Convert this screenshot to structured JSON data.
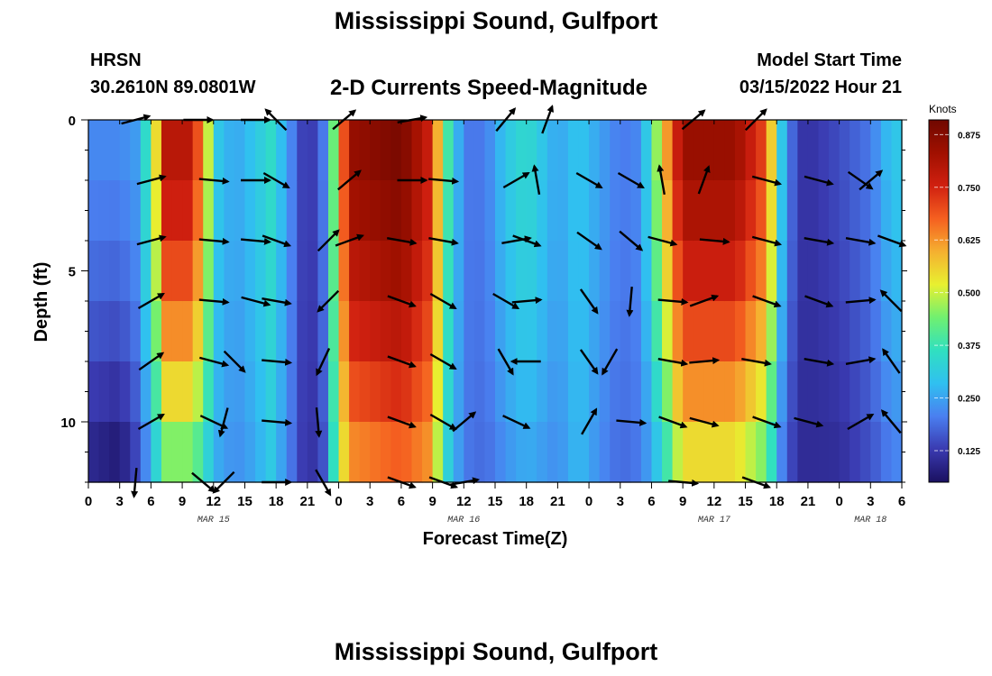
{
  "header": {
    "title": "Mississippi Sound, Gulfport",
    "station_id": "HRSN",
    "station_coords": "30.2610N  89.0801W",
    "model_label": "Model Start Time",
    "model_time": "03/15/2022 Hour 21",
    "bottom_title": "Mississippi Sound, Gulfport"
  },
  "chart_data": {
    "type": "heatmap",
    "title": "2-D Currents Speed-Magnitude",
    "xlabel": "Forecast Time(Z)",
    "ylabel": "Depth (ft)",
    "x_tick_labels": [
      "0",
      "3",
      "6",
      "9",
      "12",
      "15",
      "18",
      "21",
      "0",
      "3",
      "6",
      "9",
      "12",
      "15",
      "18",
      "21",
      "0",
      "3",
      "6",
      "9",
      "12",
      "15",
      "18",
      "21",
      "0",
      "3",
      "6"
    ],
    "x_range_hours": [
      0,
      78
    ],
    "date_labels": [
      {
        "label": "MAR 15",
        "hour": 12
      },
      {
        "label": "MAR 16",
        "hour": 36
      },
      {
        "label": "MAR 17",
        "hour": 60
      },
      {
        "label": "MAR 18",
        "hour": 75
      }
    ],
    "y_range_ft": [
      0,
      12
    ],
    "y_tick_labels": [
      {
        "value": 0,
        "label": "0"
      },
      {
        "value": 5,
        "label": "5"
      },
      {
        "value": 10,
        "label": "10"
      }
    ],
    "colorbar": {
      "label": "Knots",
      "range": [
        0.05,
        0.91
      ],
      "ticks": [
        "0.125",
        "0.250",
        "0.375",
        "0.500",
        "0.625",
        "0.750",
        "0.875"
      ],
      "colors": [
        "#1a1060",
        "#3a3ab0",
        "#4a7ff0",
        "#30c0f0",
        "#30e0c0",
        "#70f070",
        "#e8f030",
        "#f5b030",
        "#f56020",
        "#d02010",
        "#a01000",
        "#700800"
      ]
    },
    "depth_levels_ft": [
      0,
      2,
      4,
      6,
      8,
      10,
      12
    ],
    "speed_profile": {
      "hours": [
        0,
        3,
        5,
        6.5,
        7.5,
        10,
        11.5,
        12.5,
        14,
        16,
        17.5,
        19,
        21,
        22.5,
        24,
        25,
        30,
        33,
        34,
        36,
        38,
        40,
        42,
        45,
        47,
        49,
        51,
        53,
        55,
        57,
        58.5,
        60,
        62,
        65,
        66.5,
        68,
        69.5,
        72,
        75,
        77,
        78
      ],
      "surface_knots": [
        0.22,
        0.22,
        0.25,
        0.55,
        0.8,
        0.8,
        0.5,
        0.3,
        0.25,
        0.3,
        0.35,
        0.25,
        0.1,
        0.2,
        0.55,
        0.85,
        0.9,
        0.75,
        0.45,
        0.2,
        0.2,
        0.3,
        0.35,
        0.25,
        0.3,
        0.25,
        0.2,
        0.22,
        0.55,
        0.85,
        0.85,
        0.85,
        0.85,
        0.7,
        0.3,
        0.12,
        0.12,
        0.15,
        0.2,
        0.3,
        0.3
      ],
      "bottom_knots": [
        0.08,
        0.05,
        0.15,
        0.3,
        0.4,
        0.4,
        0.3,
        0.25,
        0.22,
        0.25,
        0.3,
        0.22,
        0.1,
        0.15,
        0.45,
        0.6,
        0.65,
        0.6,
        0.35,
        0.2,
        0.18,
        0.22,
        0.25,
        0.22,
        0.28,
        0.22,
        0.18,
        0.2,
        0.3,
        0.5,
        0.5,
        0.5,
        0.5,
        0.4,
        0.2,
        0.1,
        0.1,
        0.1,
        0.15,
        0.2,
        0.2
      ]
    },
    "vectors": [
      {
        "hour": 4.5,
        "depth": 0,
        "angle": 15
      },
      {
        "hour": 10.5,
        "depth": 0,
        "angle": 0
      },
      {
        "hour": 16,
        "depth": 0,
        "angle": 0
      },
      {
        "hour": 18,
        "depth": 0,
        "angle": 135
      },
      {
        "hour": 24.5,
        "depth": 0,
        "angle": 40
      },
      {
        "hour": 31,
        "depth": 0,
        "angle": 10
      },
      {
        "hour": 40,
        "depth": 0,
        "angle": 50
      },
      {
        "hour": 44,
        "depth": 0,
        "angle": 70
      },
      {
        "hour": 58,
        "depth": 0,
        "angle": 40
      },
      {
        "hour": 64,
        "depth": 0,
        "angle": 45
      },
      {
        "hour": 6,
        "depth": 2,
        "angle": 15
      },
      {
        "hour": 12,
        "depth": 2,
        "angle": -5
      },
      {
        "hour": 16,
        "depth": 2,
        "angle": 0
      },
      {
        "hour": 18,
        "depth": 2,
        "angle": -30
      },
      {
        "hour": 25,
        "depth": 2,
        "angle": 40
      },
      {
        "hour": 31,
        "depth": 2,
        "angle": 0
      },
      {
        "hour": 34,
        "depth": 2,
        "angle": -5
      },
      {
        "hour": 41,
        "depth": 2,
        "angle": 30
      },
      {
        "hour": 43,
        "depth": 2,
        "angle": 100
      },
      {
        "hour": 48,
        "depth": 2,
        "angle": -30
      },
      {
        "hour": 52,
        "depth": 2,
        "angle": -30
      },
      {
        "hour": 55,
        "depth": 2,
        "angle": 100
      },
      {
        "hour": 59,
        "depth": 2,
        "angle": 70
      },
      {
        "hour": 65,
        "depth": 2,
        "angle": -15
      },
      {
        "hour": 70,
        "depth": 2,
        "angle": -15
      },
      {
        "hour": 74,
        "depth": 2,
        "angle": -35
      },
      {
        "hour": 75,
        "depth": 2,
        "angle": 40
      },
      {
        "hour": 6,
        "depth": 4,
        "angle": 15
      },
      {
        "hour": 12,
        "depth": 4,
        "angle": -5
      },
      {
        "hour": 16,
        "depth": 4,
        "angle": -5
      },
      {
        "hour": 18,
        "depth": 4,
        "angle": -20
      },
      {
        "hour": 23,
        "depth": 4,
        "angle": 45
      },
      {
        "hour": 25,
        "depth": 4,
        "angle": 20
      },
      {
        "hour": 30,
        "depth": 4,
        "angle": -10
      },
      {
        "hour": 34,
        "depth": 4,
        "angle": -10
      },
      {
        "hour": 41,
        "depth": 4,
        "angle": 10
      },
      {
        "hour": 42,
        "depth": 4,
        "angle": -20
      },
      {
        "hour": 48,
        "depth": 4,
        "angle": -35
      },
      {
        "hour": 52,
        "depth": 4,
        "angle": -40
      },
      {
        "hour": 55,
        "depth": 4,
        "angle": -15
      },
      {
        "hour": 60,
        "depth": 4,
        "angle": -5
      },
      {
        "hour": 65,
        "depth": 4,
        "angle": -15
      },
      {
        "hour": 70,
        "depth": 4,
        "angle": -10
      },
      {
        "hour": 74,
        "depth": 4,
        "angle": -10
      },
      {
        "hour": 77,
        "depth": 4,
        "angle": -20
      },
      {
        "hour": 6,
        "depth": 6,
        "angle": 30
      },
      {
        "hour": 12,
        "depth": 6,
        "angle": -5
      },
      {
        "hour": 16,
        "depth": 6,
        "angle": -15
      },
      {
        "hour": 18,
        "depth": 6,
        "angle": -10
      },
      {
        "hour": 23,
        "depth": 6,
        "angle": 225
      },
      {
        "hour": 30,
        "depth": 6,
        "angle": -20
      },
      {
        "hour": 34,
        "depth": 6,
        "angle": -30
      },
      {
        "hour": 40,
        "depth": 6,
        "angle": -30
      },
      {
        "hour": 42,
        "depth": 6,
        "angle": 5
      },
      {
        "hour": 48,
        "depth": 6,
        "angle": -55
      },
      {
        "hour": 52,
        "depth": 6,
        "angle": -95
      },
      {
        "hour": 56,
        "depth": 6,
        "angle": -5
      },
      {
        "hour": 59,
        "depth": 6,
        "angle": 20
      },
      {
        "hour": 65,
        "depth": 6,
        "angle": -20
      },
      {
        "hour": 70,
        "depth": 6,
        "angle": -20
      },
      {
        "hour": 74,
        "depth": 6,
        "angle": 5
      },
      {
        "hour": 77,
        "depth": 6,
        "angle": 135
      },
      {
        "hour": 6,
        "depth": 8,
        "angle": 35
      },
      {
        "hour": 12,
        "depth": 8,
        "angle": -15
      },
      {
        "hour": 14,
        "depth": 8,
        "angle": -45
      },
      {
        "hour": 18,
        "depth": 8,
        "angle": -5
      },
      {
        "hour": 22.5,
        "depth": 8,
        "angle": 245
      },
      {
        "hour": 30,
        "depth": 8,
        "angle": -20
      },
      {
        "hour": 34,
        "depth": 8,
        "angle": -30
      },
      {
        "hour": 40,
        "depth": 8,
        "angle": -60
      },
      {
        "hour": 42,
        "depth": 8,
        "angle": 180
      },
      {
        "hour": 48,
        "depth": 8,
        "angle": -55
      },
      {
        "hour": 50,
        "depth": 8,
        "angle": 240
      },
      {
        "hour": 56,
        "depth": 8,
        "angle": -10
      },
      {
        "hour": 59,
        "depth": 8,
        "angle": 5
      },
      {
        "hour": 64,
        "depth": 8,
        "angle": -10
      },
      {
        "hour": 70,
        "depth": 8,
        "angle": -10
      },
      {
        "hour": 74,
        "depth": 8,
        "angle": 10
      },
      {
        "hour": 77,
        "depth": 8,
        "angle": 125
      },
      {
        "hour": 6,
        "depth": 10,
        "angle": 30
      },
      {
        "hour": 12,
        "depth": 10,
        "angle": -25
      },
      {
        "hour": 13,
        "depth": 10,
        "angle": 255
      },
      {
        "hour": 18,
        "depth": 10,
        "angle": -5
      },
      {
        "hour": 22,
        "depth": 10,
        "angle": 275
      },
      {
        "hour": 30,
        "depth": 10,
        "angle": -20
      },
      {
        "hour": 34,
        "depth": 10,
        "angle": -30
      },
      {
        "hour": 36,
        "depth": 10,
        "angle": 40
      },
      {
        "hour": 41,
        "depth": 10,
        "angle": -25
      },
      {
        "hour": 48,
        "depth": 10,
        "angle": 60
      },
      {
        "hour": 52,
        "depth": 10,
        "angle": -5
      },
      {
        "hour": 56,
        "depth": 10,
        "angle": -20
      },
      {
        "hour": 59,
        "depth": 10,
        "angle": -15
      },
      {
        "hour": 65,
        "depth": 10,
        "angle": -20
      },
      {
        "hour": 69,
        "depth": 10,
        "angle": -15
      },
      {
        "hour": 74,
        "depth": 10,
        "angle": 30
      },
      {
        "hour": 77,
        "depth": 10,
        "angle": 130
      },
      {
        "hour": 4.5,
        "depth": 12,
        "angle": 265
      },
      {
        "hour": 11,
        "depth": 12,
        "angle": -40
      },
      {
        "hour": 13,
        "depth": 12,
        "angle": 225
      },
      {
        "hour": 18,
        "depth": 12,
        "angle": 0
      },
      {
        "hour": 22.5,
        "depth": 12,
        "angle": -60
      },
      {
        "hour": 30,
        "depth": 12,
        "angle": -20
      },
      {
        "hour": 34,
        "depth": 12,
        "angle": -20
      },
      {
        "hour": 36,
        "depth": 12,
        "angle": 10
      },
      {
        "hour": 57,
        "depth": 12,
        "angle": -5
      },
      {
        "hour": 64,
        "depth": 12,
        "angle": -20
      }
    ]
  }
}
